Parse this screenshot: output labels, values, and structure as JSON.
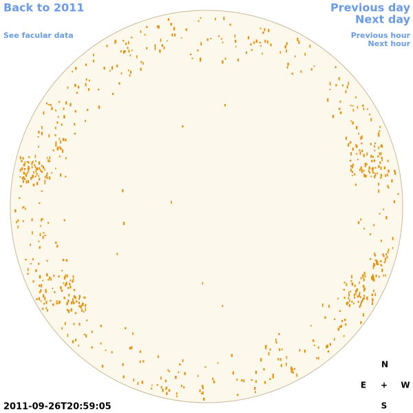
{
  "nav": {
    "back": "Back to 2011",
    "facular": "See facular data",
    "previous_day": "Previous day",
    "next_day": "Next day",
    "previous_hour": "Previous hour",
    "next_hour": "Next hour"
  },
  "timestamp": "2011-09-26T20:59:05",
  "compass": {
    "north": "N",
    "east": "E",
    "center": "+",
    "west": "W",
    "south": "S"
  }
}
